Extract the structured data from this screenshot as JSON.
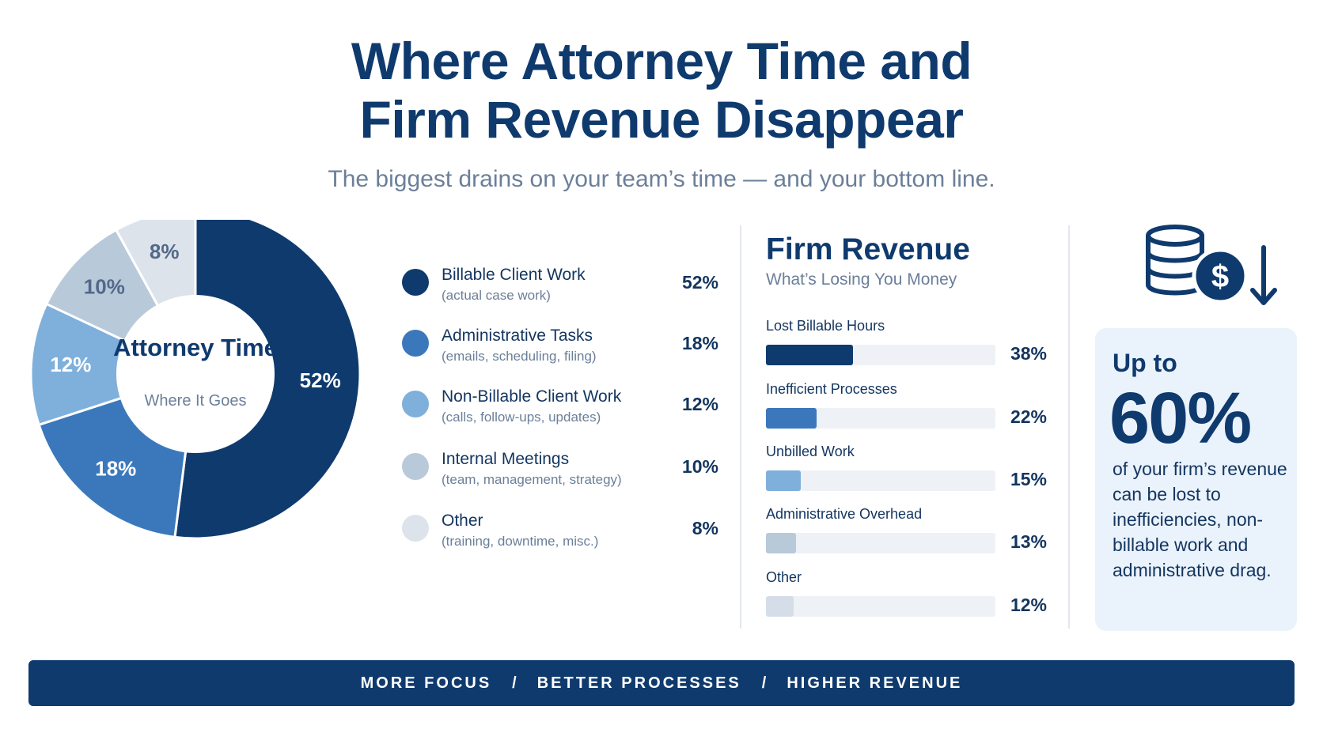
{
  "header": {
    "title_line1": "Where Attorney Time and",
    "title_line2": "Firm Revenue Disappear",
    "subtitle": "The biggest drains on your team’s time — and your bottom line."
  },
  "chart_data": [
    {
      "type": "pie",
      "variant": "donut",
      "title": "Attorney Time",
      "subtitle": "Where It Goes",
      "categories": [
        "Billable Client Work",
        "Administrative Tasks",
        "Non-Billable Client Work",
        "Internal Meetings",
        "Other"
      ],
      "descriptions": [
        "(actual case work)",
        "(emails, scheduling, filing)",
        "(calls, follow-ups, updates)",
        "(team, management, strategy)",
        "(training, downtime, misc.)"
      ],
      "values": [
        52,
        18,
        12,
        10,
        8
      ],
      "value_labels": [
        "52%",
        "18%",
        "12%",
        "10%",
        "8%"
      ],
      "colors": [
        "#0f3a6e",
        "#3b78bb",
        "#7fb0dc",
        "#b8c9da",
        "#dde3eb"
      ],
      "label_colors": [
        "#ffffff",
        "#ffffff",
        "#ffffff",
        "#53698a",
        "#53698a"
      ]
    },
    {
      "type": "bar",
      "orientation": "horizontal",
      "title": "Firm Revenue",
      "subtitle": "What’s Losing You Money",
      "categories": [
        "Lost Billable Hours",
        "Inefficient Processes",
        "Unbilled Work",
        "Administrative Overhead",
        "Other"
      ],
      "values": [
        38,
        22,
        15,
        13,
        12
      ],
      "value_labels": [
        "38%",
        "22%",
        "15%",
        "13%",
        "12%"
      ],
      "colors": [
        "#0f3a6e",
        "#3b78bb",
        "#7fb0dc",
        "#b8c9da",
        "#d5dee8"
      ],
      "xlim": [
        0,
        100
      ]
    }
  ],
  "callout": {
    "icon": "coins-dollar-down-icon",
    "prefix": "Up to",
    "stat": "60%",
    "text": "of your firm’s revenue can be lost to inefficiencies, non-billable work and administrative drag."
  },
  "banner": {
    "items": [
      "MORE FOCUS",
      "BETTER PROCESSES",
      "HIGHER REVENUE"
    ],
    "separator": "/"
  },
  "colors": {
    "primary": "#0f3a6e",
    "muted_text": "#6b7f99",
    "callout_bg": "#eaf2fb",
    "track": "#eef1f5"
  }
}
